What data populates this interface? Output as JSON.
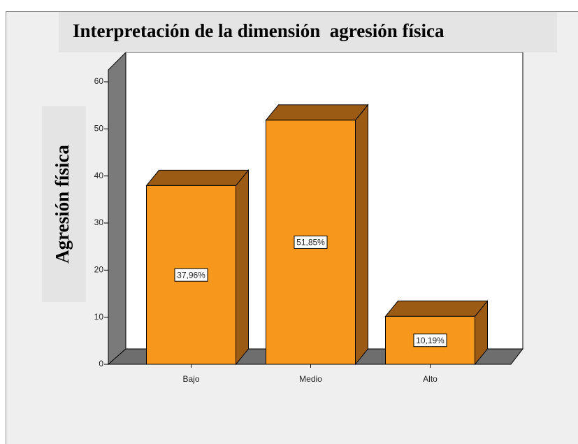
{
  "chart_data": {
    "type": "bar3d",
    "title": "Interpretación de la dimensión  agresión física",
    "y_label": "Agresión física",
    "categories": [
      "Bajo",
      "Medio",
      "Alto"
    ],
    "values": [
      37.96,
      51.85,
      10.19
    ],
    "value_labels": [
      "37,96%",
      "51,85%",
      "10,19%"
    ],
    "color": "#f7981d",
    "ylim": [
      0,
      60
    ],
    "yticks": [
      0,
      10,
      20,
      30,
      40,
      50,
      60
    ]
  }
}
